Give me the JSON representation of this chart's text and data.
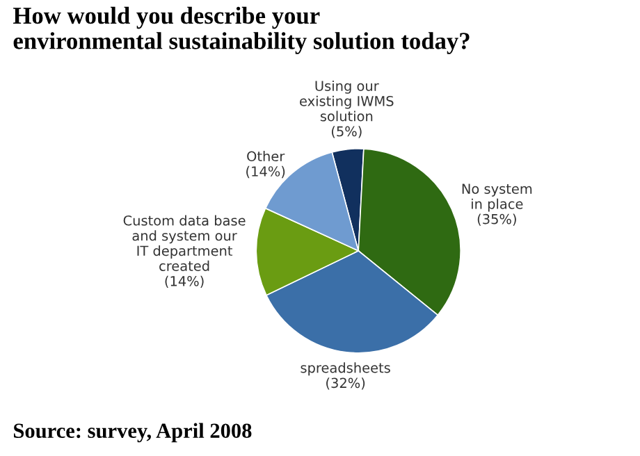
{
  "chart_data": {
    "type": "pie",
    "title": "How would you describe your\nenvironmental sustainability solution today?",
    "categories": [
      "Using our\nexisting IWMS\nsolution",
      "No system\nin place",
      "spreadsheets",
      "Custom data base\nand system our\nIT department\ncreated",
      "Other"
    ],
    "values": [
      5,
      35,
      32,
      14,
      14
    ],
    "value_labels": [
      "(5%)",
      "(35%)",
      "(32%)",
      "(14%)",
      "(14%)"
    ],
    "colors": [
      "#11305e",
      "#2f6a12",
      "#3b6fa8",
      "#6a9c12",
      "#6f9bd0"
    ],
    "annotations": [
      "Source: survey, April 2008"
    ]
  }
}
